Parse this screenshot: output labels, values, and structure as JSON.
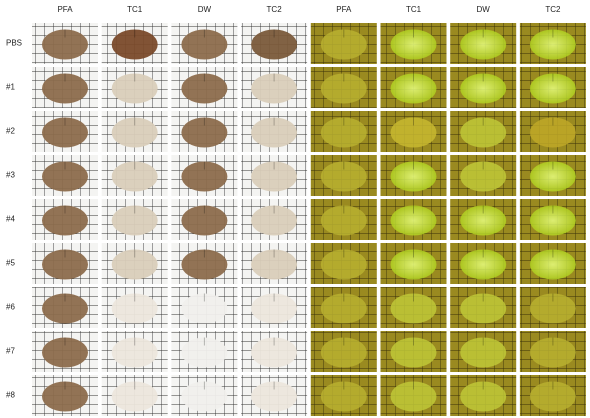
{
  "columns": [
    "PFA",
    "TC1",
    "DW",
    "TC2",
    "PFA",
    "TC1",
    "DW",
    "TC2"
  ],
  "rows": [
    "PBS",
    "#1",
    "#2",
    "#3",
    "#4",
    "#5",
    "#6",
    "#7",
    "#8"
  ]
}
